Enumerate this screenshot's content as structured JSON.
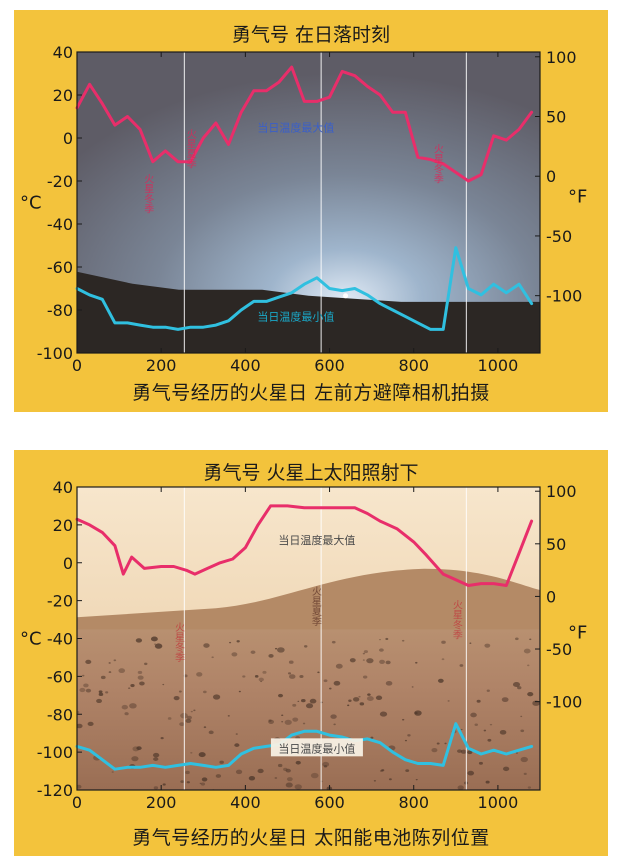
{
  "panels": [
    {
      "title": "勇气号 在日落时刻",
      "xlabel": "勇气号经历的火星日  左前方避障相机拍摄",
      "ylabel_left": "°C",
      "ylabel_right": "°F",
      "chart_data": {
        "type": "line",
        "title": "勇气号 在日落时刻",
        "xlabel": "勇气号经历的火星日  左前方避障相机拍摄",
        "ylabel": "°C",
        "y2label": "°F",
        "xlim": [
          0,
          1100
        ],
        "ylim": [
          -100,
          40
        ],
        "y2lim": [
          -148,
          104
        ],
        "x_ticks": [
          0,
          200,
          400,
          600,
          800,
          1000
        ],
        "y_ticks": [
          -100,
          -80,
          -60,
          -40,
          -20,
          0,
          20,
          40
        ],
        "y2_ticks": [
          -100,
          -50,
          0,
          50,
          100
        ],
        "grid": false,
        "background": "photo",
        "vlines": [
          255,
          580,
          925
        ],
        "annotations": [
          {
            "text": "当日温度最大值",
            "x": 520,
            "y": 5,
            "color": "#3a5fc8"
          },
          {
            "text": "当日温度最小值",
            "x": 520,
            "y": -83,
            "color": "#1aa8c8"
          },
          {
            "text": "火星夏季",
            "x": 268,
            "y": -5,
            "color": "#d82a5a",
            "vertical": true
          },
          {
            "text": "火星冬季",
            "x": 167,
            "y": -26,
            "color": "#d82a5a",
            "vertical": true
          },
          {
            "text": "火星冬季",
            "x": 855,
            "y": -12,
            "color": "#d82a5a",
            "vertical": true
          }
        ],
        "series": [
          {
            "name": "当日温度最大值",
            "color": "#e82e6a",
            "x": [
              0,
              30,
              60,
              90,
              120,
              150,
              180,
              210,
              240,
              270,
              300,
              330,
              360,
              390,
              420,
              450,
              480,
              510,
              540,
              570,
              600,
              630,
              660,
              690,
              720,
              750,
              780,
              810,
              840,
              870,
              900,
              930,
              960,
              990,
              1020,
              1050,
              1080
            ],
            "values": [
              14,
              25,
              16,
              6,
              10,
              4,
              -11,
              -6,
              -11,
              -11,
              0,
              7,
              -3,
              12,
              22,
              22,
              26,
              33,
              17,
              17,
              19,
              31,
              29,
              24,
              20,
              12,
              12,
              -9,
              -10,
              -12,
              -16,
              -20,
              -17,
              1,
              -1,
              4,
              12
            ]
          },
          {
            "name": "当日温度最小值",
            "color": "#30c0e0",
            "x": [
              0,
              30,
              60,
              90,
              120,
              150,
              180,
              210,
              240,
              270,
              300,
              330,
              360,
              390,
              420,
              450,
              480,
              510,
              540,
              570,
              600,
              630,
              660,
              690,
              720,
              750,
              780,
              810,
              840,
              870,
              900,
              930,
              960,
              990,
              1020,
              1050,
              1080
            ],
            "values": [
              -70,
              -73,
              -75,
              -86,
              -86,
              -87,
              -88,
              -88,
              -89,
              -88,
              -88,
              -87,
              -85,
              -80,
              -76,
              -76,
              -74,
              -72,
              -68,
              -65,
              -70,
              -71,
              -70,
              -73,
              -77,
              -80,
              -83,
              -86,
              -89,
              -89,
              -51,
              -70,
              -73,
              -68,
              -72,
              -68,
              -77
            ]
          }
        ]
      }
    },
    {
      "title": "勇气号 火星上太阳照射下",
      "xlabel": "勇气号经历的火星日  太阳能电池陈列位置",
      "ylabel_left": "°C",
      "ylabel_right": "°F",
      "chart_data": {
        "type": "line",
        "title": "勇气号 火星上太阳照射下",
        "xlabel": "勇气号经历的火星日  太阳能电池陈列位置",
        "ylabel": "°C",
        "y2label": "°F",
        "xlim": [
          0,
          1100
        ],
        "ylim": [
          -120,
          40
        ],
        "y2lim": [
          -184,
          104
        ],
        "x_ticks": [
          0,
          200,
          400,
          600,
          800,
          1000
        ],
        "y_ticks": [
          -120,
          -100,
          -80,
          -60,
          -40,
          -20,
          0,
          20,
          40
        ],
        "y2_ticks": [
          -100,
          -50,
          0,
          50,
          100
        ],
        "grid": false,
        "background": "photo",
        "vlines": [
          255,
          580,
          925
        ],
        "annotations": [
          {
            "text": "当日温度最大值",
            "x": 570,
            "y": 12,
            "color": "#4a4a4a"
          },
          {
            "text": "当日温度最小值",
            "x": 570,
            "y": -98,
            "color": "#4a4a4a",
            "boxed": true
          },
          {
            "text": "火星夏季",
            "x": 565,
            "y": -23,
            "color": "#6a4030",
            "vertical": true
          },
          {
            "text": "火星冬季",
            "x": 240,
            "y": -42,
            "color": "#c04040",
            "vertical": true
          },
          {
            "text": "火星冬季",
            "x": 900,
            "y": -30,
            "color": "#c04040",
            "vertical": true
          }
        ],
        "series": [
          {
            "name": "当日温度最大值",
            "color": "#e82e6a",
            "x": [
              0,
              30,
              60,
              90,
              110,
              130,
              160,
              200,
              230,
              260,
              280,
              310,
              340,
              370,
              400,
              430,
              460,
              500,
              540,
              570,
              600,
              630,
              660,
              690,
              720,
              760,
              800,
              830,
              870,
              900,
              930,
              960,
              990,
              1020,
              1050,
              1080
            ],
            "values": [
              23,
              20,
              16,
              9,
              -6,
              3,
              -3,
              -2,
              -2,
              -4,
              -6,
              -3,
              0,
              2,
              8,
              20,
              30,
              30,
              29,
              29,
              29,
              29,
              29,
              26,
              22,
              18,
              11,
              4,
              -6,
              -9,
              -12,
              -11,
              -11,
              -12,
              5,
              22
            ]
          },
          {
            "name": "当日温度最小值",
            "color": "#30c0e0",
            "x": [
              0,
              30,
              60,
              90,
              120,
              150,
              180,
              210,
              240,
              270,
              300,
              330,
              360,
              390,
              420,
              450,
              480,
              510,
              540,
              570,
              600,
              630,
              660,
              690,
              720,
              750,
              780,
              810,
              840,
              870,
              900,
              930,
              960,
              990,
              1020,
              1050,
              1080
            ],
            "values": [
              -97,
              -99,
              -104,
              -109,
              -108,
              -108,
              -107,
              -108,
              -107,
              -106,
              -107,
              -108,
              -107,
              -101,
              -98,
              -97,
              -96,
              -91,
              -89,
              -89,
              -91,
              -92,
              -94,
              -93,
              -95,
              -100,
              -104,
              -106,
              -106,
              -107,
              -85,
              -98,
              -101,
              -99,
              -101,
              -99,
              -97
            ]
          }
        ]
      }
    }
  ]
}
